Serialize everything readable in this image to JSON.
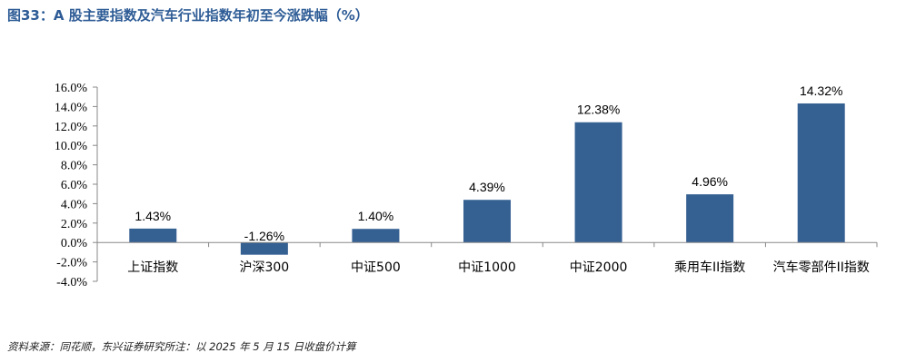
{
  "header": {
    "title": "图33：A 股主要指数及汽车行业指数年初至今涨跌幅（%）"
  },
  "footer": {
    "source": "资料来源：同花顺，东兴证券研究所注：以 2025 年 5 月 15 日收盘价计算"
  },
  "chart_data": {
    "type": "bar",
    "categories": [
      "上证指数",
      "沪深300",
      "中证500",
      "中证1000",
      "中证2000",
      "乘用车II指数",
      "汽车零部件II指数"
    ],
    "values": [
      1.43,
      -1.26,
      1.4,
      4.39,
      12.38,
      4.96,
      14.32
    ],
    "data_labels": [
      "1.43%",
      "-1.26%",
      "1.40%",
      "4.39%",
      "12.38%",
      "4.96%",
      "14.32%"
    ],
    "ylim": [
      -4.0,
      16.0
    ],
    "yticks": [
      16.0,
      14.0,
      12.0,
      10.0,
      8.0,
      6.0,
      4.0,
      2.0,
      0.0,
      -2.0,
      -4.0
    ],
    "ytick_labels": [
      "16.0%",
      "14.0%",
      "12.0%",
      "10.0%",
      "8.0%",
      "6.0%",
      "4.0%",
      "2.0%",
      "0.0%",
      "-2.0%",
      "-4.0%"
    ],
    "bar_color": "#356092",
    "grid": false,
    "legend": "none"
  }
}
